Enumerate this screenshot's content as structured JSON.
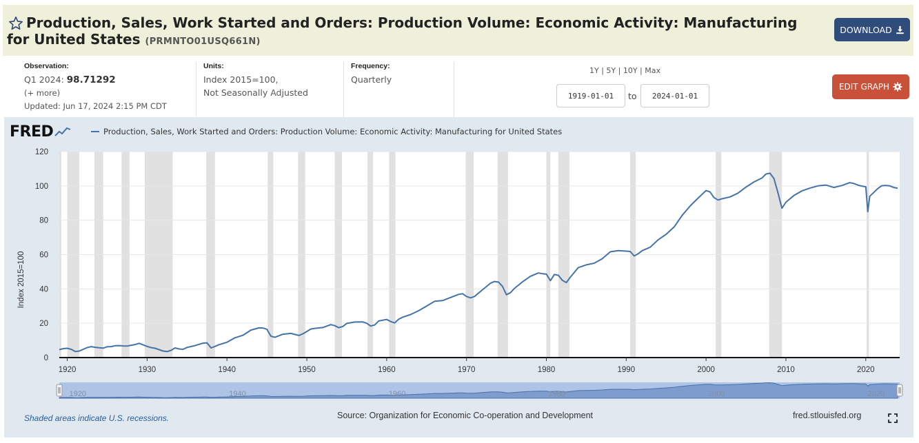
{
  "header": {
    "title": "Production, Sales, Work Started and Orders: Production Volume: Economic Activity: Manufacturing for United States",
    "series_id": "(PRMNTO01USQ661N)",
    "download_label": "DOWNLOAD",
    "star_icon": "star-outline-icon",
    "download_icon": "download-icon"
  },
  "meta": {
    "observation_label": "Observation:",
    "observation_period": "Q1 2024:",
    "observation_value": "98.71292",
    "more_link": "(+ more)",
    "updated": "Updated: Jun 17, 2024 2:15 PM CDT",
    "units_label": "Units:",
    "units_line1": "Index 2015=100,",
    "units_line2": "Not Seasonally Adjusted",
    "frequency_label": "Frequency:",
    "frequency_value": "Quarterly"
  },
  "controls": {
    "range_1y": "1Y",
    "range_5y": "5Y",
    "range_10y": "10Y",
    "range_max": "Max",
    "start_date": "1919-01-01",
    "to_label": "to",
    "end_date": "2024-01-01",
    "edit_graph_label": "EDIT GRAPH",
    "edit_icon": "gear-icon"
  },
  "colors": {
    "line": "#4572a7",
    "recession": "#e1e1e1",
    "plot_bg": "#ffffff",
    "panel_bg": "#e1e9f0",
    "download_btn": "#2f4c7a",
    "edit_btn": "#c9513a",
    "navigator_mask": "#aec4e6",
    "navigator_fill": "#6d8fc4"
  },
  "chart": {
    "logo": "FRED",
    "legend": "Production, Sales, Work Started and Orders: Production Volume: Economic Activity: Manufacturing for United States",
    "y_title": "Index 2015=100",
    "recession_note": "Shaded areas indicate U.S. recessions.",
    "source": "Source: Organization for Economic Co-operation and Development",
    "url": "fred.stlouisfed.org",
    "fullscreen_icon": "fullscreen-icon"
  },
  "chart_data": {
    "type": "line",
    "title": "",
    "xlabel": "",
    "ylabel": "Index 2015=100",
    "xlim": [
      1919,
      2024.25
    ],
    "ylim": [
      0,
      120
    ],
    "grid": true,
    "legend_position": "top-left",
    "y_ticks": [
      0,
      20,
      40,
      60,
      80,
      100,
      120
    ],
    "x_ticks": [
      1920,
      1930,
      1940,
      1950,
      1960,
      1970,
      1980,
      1990,
      2000,
      2010,
      2020
    ],
    "navigator_ticks": [
      1920,
      1940,
      1960,
      1980,
      2000,
      2020
    ],
    "recessions": [
      [
        1918.7,
        1919.25
      ],
      [
        1920.0,
        1921.5
      ],
      [
        1923.4,
        1924.5
      ],
      [
        1926.8,
        1927.8
      ],
      [
        1929.7,
        1933.2
      ],
      [
        1937.4,
        1938.5
      ],
      [
        1945.1,
        1945.8
      ],
      [
        1948.9,
        1949.8
      ],
      [
        1953.5,
        1954.4
      ],
      [
        1957.6,
        1958.3
      ],
      [
        1960.3,
        1961.1
      ],
      [
        1969.9,
        1970.9
      ],
      [
        1973.9,
        1975.2
      ],
      [
        1980.0,
        1980.5
      ],
      [
        1981.5,
        1982.9
      ],
      [
        1990.5,
        1991.2
      ],
      [
        2001.2,
        2001.9
      ],
      [
        2007.9,
        2009.5
      ],
      [
        2020.1,
        2020.4
      ]
    ],
    "series": [
      {
        "name": "Production, Sales, Work Started and Orders: Production Volume: Economic Activity: Manufacturing for United States",
        "x": [
          1919.0,
          1919.5,
          1920.0,
          1920.5,
          1921.0,
          1921.5,
          1922.0,
          1922.5,
          1923.0,
          1923.5,
          1924.0,
          1924.5,
          1925.0,
          1925.5,
          1926.0,
          1926.5,
          1927.0,
          1927.5,
          1928.0,
          1928.5,
          1929.0,
          1929.5,
          1930.0,
          1930.5,
          1931.0,
          1931.5,
          1932.0,
          1932.5,
          1933.0,
          1933.5,
          1934.0,
          1934.5,
          1935.0,
          1936.0,
          1937.0,
          1937.5,
          1938.0,
          1938.5,
          1939.0,
          1940.0,
          1941.0,
          1942.0,
          1943.0,
          1944.0,
          1944.5,
          1945.0,
          1945.5,
          1946.0,
          1947.0,
          1948.0,
          1949.0,
          1949.5,
          1950.0,
          1950.5,
          1951.0,
          1952.0,
          1953.0,
          1953.5,
          1954.0,
          1954.5,
          1955.0,
          1956.0,
          1957.0,
          1957.5,
          1958.0,
          1958.5,
          1959.0,
          1960.0,
          1960.5,
          1961.0,
          1961.5,
          1962.0,
          1963.0,
          1964.0,
          1965.0,
          1966.0,
          1967.0,
          1968.0,
          1969.0,
          1969.5,
          1970.0,
          1970.5,
          1971.0,
          1972.0,
          1973.0,
          1973.5,
          1974.0,
          1974.5,
          1975.0,
          1975.5,
          1976.0,
          1977.0,
          1978.0,
          1979.0,
          1979.5,
          1980.0,
          1980.5,
          1981.0,
          1981.5,
          1982.0,
          1982.5,
          1983.0,
          1984.0,
          1985.0,
          1986.0,
          1987.0,
          1988.0,
          1989.0,
          1990.0,
          1990.5,
          1991.0,
          1991.5,
          1992.0,
          1993.0,
          1994.0,
          1995.0,
          1996.0,
          1997.0,
          1998.0,
          1999.0,
          2000.0,
          2000.5,
          2001.0,
          2001.5,
          2002.0,
          2003.0,
          2004.0,
          2005.0,
          2006.0,
          2007.0,
          2007.5,
          2008.0,
          2008.5,
          2009.0,
          2009.5,
          2010.0,
          2011.0,
          2012.0,
          2013.0,
          2014.0,
          2015.0,
          2016.0,
          2017.0,
          2018.0,
          2018.5,
          2019.0,
          2019.5,
          2020.0,
          2020.25,
          2020.5,
          2021.0,
          2021.5,
          2022.0,
          2022.5,
          2023.0,
          2023.5,
          2024.0
        ],
        "y": [
          4.6,
          5.2,
          5.4,
          4.8,
          3.5,
          3.8,
          4.8,
          5.8,
          6.4,
          6.0,
          5.7,
          5.5,
          6.3,
          6.4,
          6.9,
          7.0,
          6.8,
          6.7,
          7.2,
          7.6,
          8.3,
          7.4,
          6.5,
          5.8,
          5.4,
          4.6,
          3.8,
          3.5,
          4.2,
          5.6,
          5.0,
          4.8,
          5.9,
          7.0,
          8.4,
          8.6,
          5.6,
          6.5,
          7.5,
          8.9,
          11.5,
          13.0,
          16.0,
          17.3,
          17.2,
          16.5,
          12.5,
          11.8,
          13.6,
          14.1,
          12.9,
          13.8,
          15.2,
          16.6,
          17.0,
          17.5,
          19.2,
          18.6,
          17.4,
          18.1,
          19.9,
          20.7,
          20.8,
          20.0,
          18.4,
          19.0,
          21.3,
          22.2,
          21.0,
          20.2,
          22.3,
          23.5,
          25.1,
          27.3,
          30.0,
          32.8,
          33.2,
          35.0,
          36.8,
          37.2,
          35.6,
          34.8,
          35.6,
          39.5,
          43.3,
          44.3,
          44.0,
          41.5,
          36.6,
          37.8,
          40.3,
          44.1,
          47.3,
          49.3,
          48.9,
          48.6,
          44.8,
          48.4,
          47.9,
          45.0,
          43.7,
          46.8,
          52.4,
          54.0,
          55.0,
          57.6,
          61.6,
          62.3,
          62.0,
          61.8,
          59.2,
          60.5,
          62.3,
          64.3,
          68.6,
          71.8,
          76.1,
          82.8,
          88.3,
          92.9,
          97.3,
          96.5,
          93.2,
          91.8,
          92.5,
          93.6,
          95.8,
          99.3,
          102.3,
          104.6,
          106.9,
          107.4,
          104.3,
          96.0,
          87.0,
          90.5,
          94.4,
          97.1,
          98.7,
          100.0,
          100.5,
          99.1,
          100.2,
          101.9,
          101.4,
          100.5,
          99.9,
          99.5,
          85.0,
          94.0,
          96.2,
          98.4,
          100.1,
          100.3,
          100.0,
          99.1,
          98.7
        ]
      }
    ]
  }
}
